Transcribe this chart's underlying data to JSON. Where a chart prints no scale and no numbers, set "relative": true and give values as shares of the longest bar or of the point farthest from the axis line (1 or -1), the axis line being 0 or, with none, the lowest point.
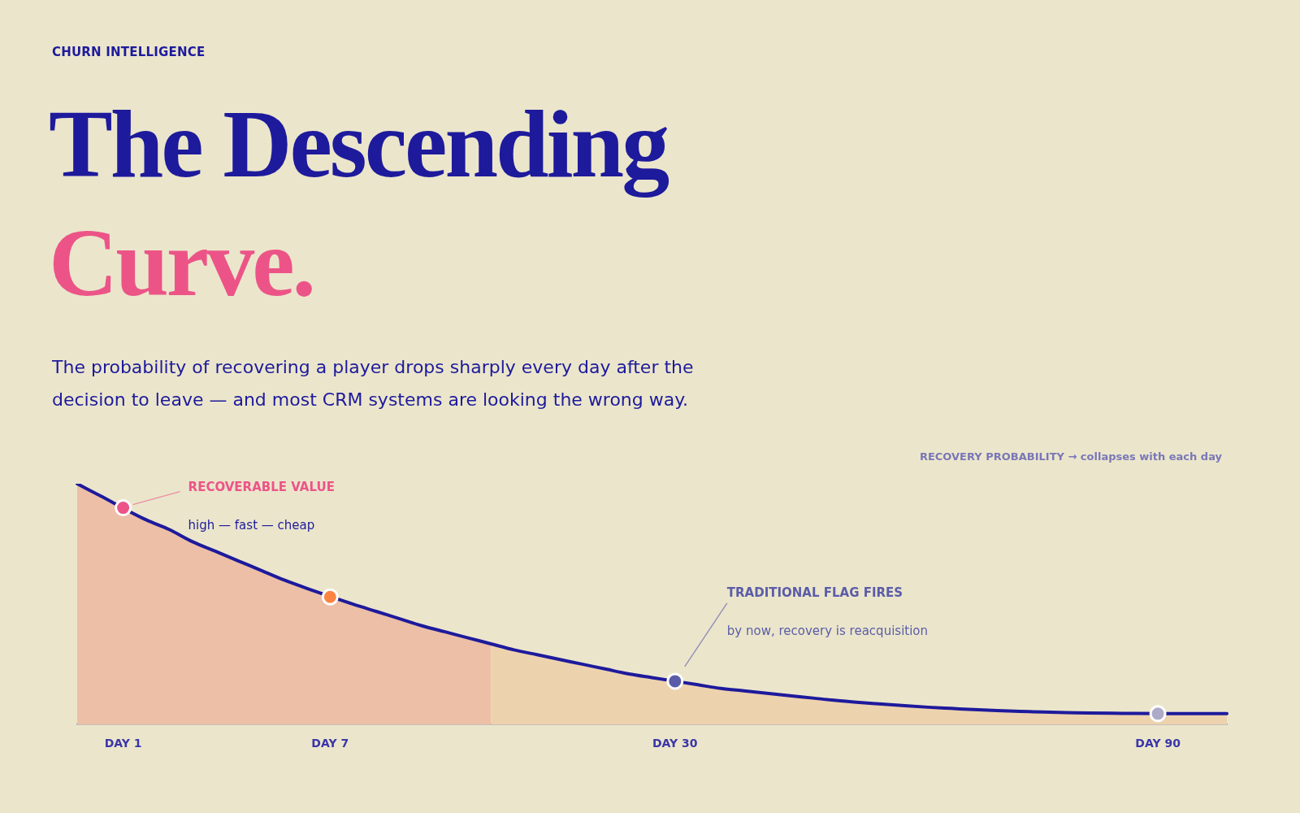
{
  "chart_data": {
    "type": "area",
    "relative": true,
    "title": "The Descending Curve.",
    "subtitle": "The probability of recovering a player drops sharply every day after the decision to leave — and most CRM systems are looking the wrong way.",
    "categories": [
      null,
      null,
      "DAY 1",
      null,
      null,
      null,
      null,
      null,
      null,
      null,
      null,
      "DAY 7",
      null,
      null,
      null,
      null,
      null,
      null,
      null,
      null,
      null,
      null,
      null,
      null,
      null,
      null,
      "DAY 30",
      null,
      null,
      null,
      null,
      null,
      null,
      null,
      null,
      null,
      null,
      null,
      null,
      null,
      null,
      null,
      null,
      null,
      null,
      null,
      null,
      "DAY 90",
      null,
      null,
      null
    ],
    "series": [
      {
        "color": "#ecbfa6",
        "values": [
          1.0,
          0.95,
          null,
          0.85,
          0.81,
          0.76,
          0.72,
          0.68,
          0.64,
          0.6,
          0.565,
          null,
          0.5,
          0.47,
          0.44,
          0.41,
          0.385,
          0.36,
          0.335,
          null,
          null,
          null,
          null,
          null,
          null,
          null,
          null,
          null,
          null,
          null,
          null,
          null,
          null,
          null,
          null,
          null,
          null,
          null,
          null,
          null,
          null,
          null,
          null,
          null,
          null,
          null,
          null,
          null,
          null,
          null,
          null
        ]
      },
      {
        "color": "#edd2ae",
        "values": [
          null,
          null,
          null,
          null,
          null,
          null,
          null,
          null,
          null,
          null,
          null,
          null,
          null,
          null,
          null,
          null,
          null,
          null,
          0.335,
          0.31,
          0.29,
          0.27,
          0.25,
          0.23,
          0.21,
          0.195,
          null,
          0.165,
          0.15,
          0.14,
          0.13,
          0.12,
          0.11,
          0.1,
          0.092,
          0.085,
          0.078,
          0.072,
          0.067,
          0.062,
          0.058,
          0.055,
          0.052,
          0.05,
          0.048,
          0.047,
          0.046,
          null,
          0.045,
          0.045,
          0.045
        ]
      },
      {
        "type": "line",
        "color": "#1e1a9c",
        "values": [
          1.0,
          0.95,
          null,
          0.85,
          0.81,
          0.76,
          0.72,
          0.68,
          0.64,
          0.6,
          0.565,
          null,
          0.5,
          0.47,
          0.44,
          0.41,
          0.385,
          0.36,
          0.335,
          0.31,
          0.29,
          0.27,
          0.25,
          0.23,
          0.21,
          0.195,
          null,
          0.165,
          0.15,
          0.14,
          0.13,
          0.12,
          0.11,
          0.1,
          0.092,
          0.085,
          0.078,
          0.072,
          0.067,
          0.062,
          0.058,
          0.055,
          0.052,
          0.05,
          0.048,
          0.047,
          0.046,
          null,
          0.045,
          0.045,
          0.045
        ]
      },
      {
        "type": "scatter",
        "x": [
          "DAY 1",
          "DAY 7",
          "DAY 30",
          "DAY 90"
        ],
        "values": [
          0.9,
          0.53,
          0.18,
          0.045
        ],
        "colors": [
          "#ec5488",
          "#fb8442",
          "#5b5ca8",
          "#adaac8"
        ]
      }
    ],
    "annotations": [
      "CHURN INTELLIGENCE",
      "RECOVERY PROBABILITY → collapses with each day",
      "RECOVERABLE VALUE",
      "high — fast — cheap",
      "TRADITIONAL FLAG FIRES",
      "by now, recovery is reacquisition"
    ],
    "grid": false,
    "legend": false,
    "tick_labels": "x"
  }
}
